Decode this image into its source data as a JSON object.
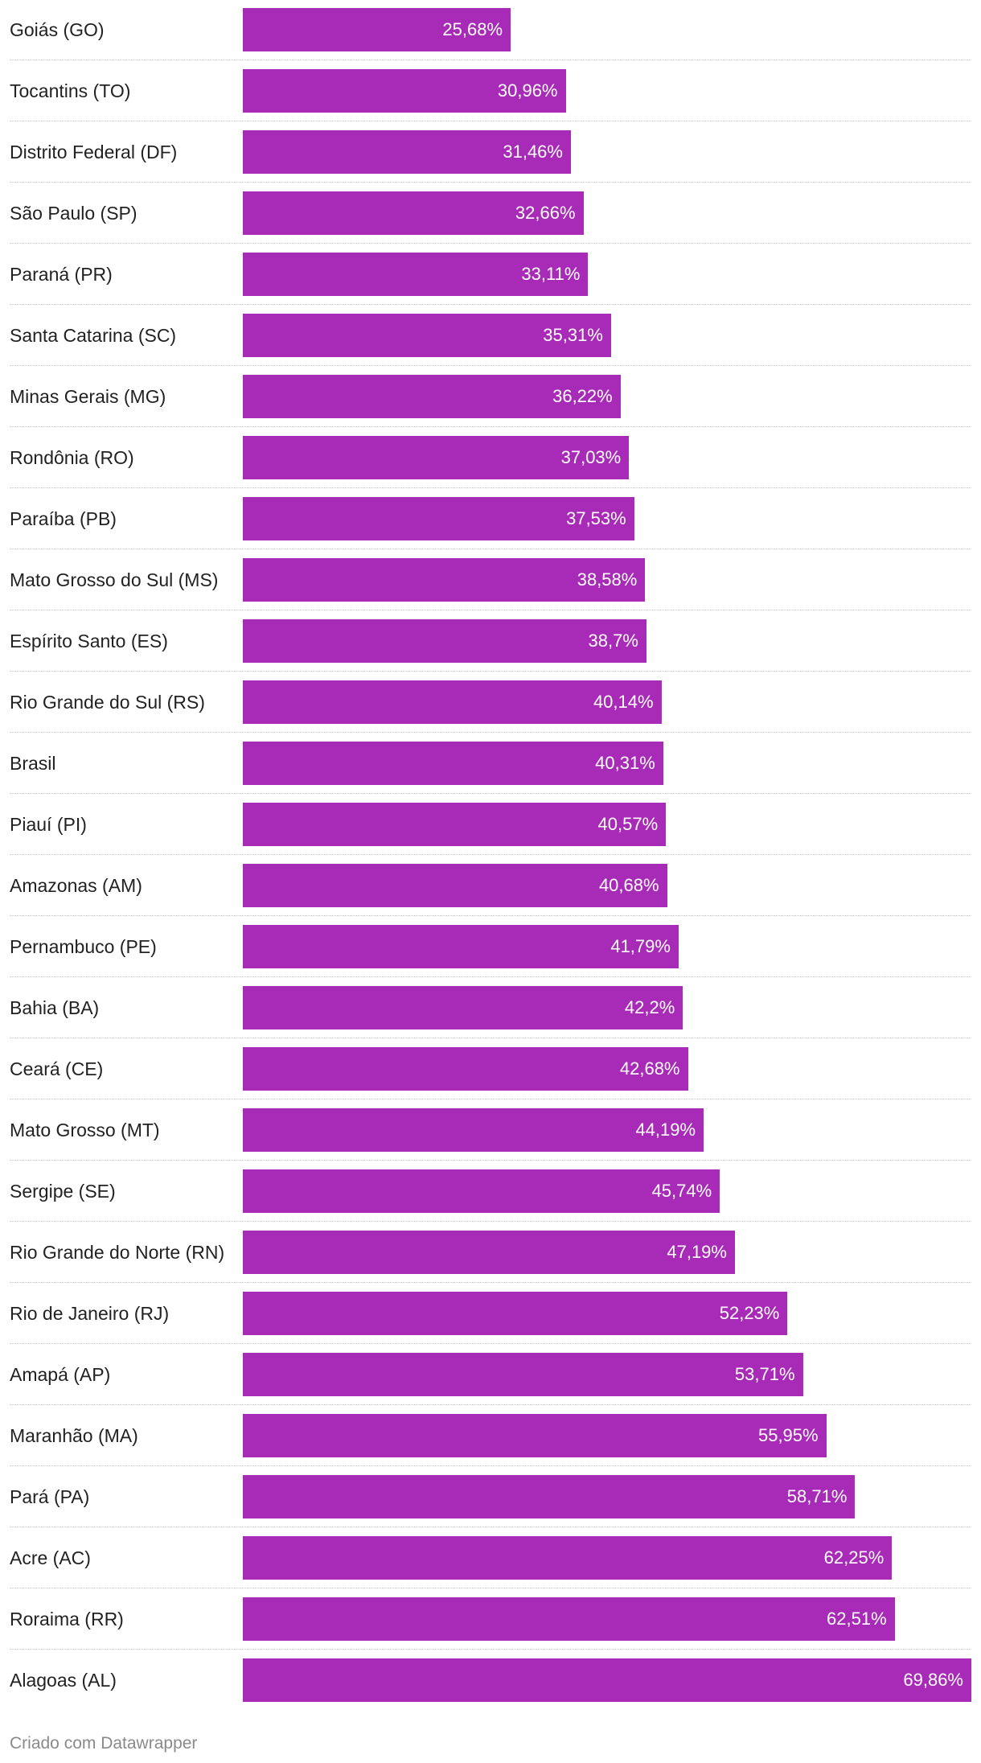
{
  "chart_data": {
    "type": "bar",
    "orientation": "horizontal",
    "bar_color": "#a82bb8",
    "categories": [
      "Goiás (GO)",
      "Tocantins (TO)",
      "Distrito Federal (DF)",
      "São Paulo (SP)",
      "Paraná (PR)",
      "Santa Catarina (SC)",
      "Minas Gerais (MG)",
      "Rondônia (RO)",
      "Paraíba (PB)",
      "Mato Grosso do Sul (MS)",
      "Espírito Santo (ES)",
      "Rio Grande do Sul (RS)",
      "Brasil",
      "Piauí (PI)",
      "Amazonas (AM)",
      "Pernambuco (PE)",
      "Bahia (BA)",
      "Ceará (CE)",
      "Mato Grosso (MT)",
      "Sergipe (SE)",
      "Rio Grande do Norte (RN)",
      "Rio de Janeiro (RJ)",
      "Amapá (AP)",
      "Maranhão (MA)",
      "Pará (PA)",
      "Acre (AC)",
      "Roraima (RR)",
      "Alagoas (AL)"
    ],
    "values": [
      25.68,
      30.96,
      31.46,
      32.66,
      33.11,
      35.31,
      36.22,
      37.03,
      37.53,
      38.58,
      38.7,
      40.14,
      40.31,
      40.57,
      40.68,
      41.79,
      42.2,
      42.68,
      44.19,
      45.74,
      47.19,
      52.23,
      53.71,
      55.95,
      58.71,
      62.25,
      62.51,
      69.86
    ],
    "value_labels": [
      "25,68%",
      "30,96%",
      "31,46%",
      "32,66%",
      "33,11%",
      "35,31%",
      "36,22%",
      "37,03%",
      "37,53%",
      "38,58%",
      "38,7%",
      "40,14%",
      "40,31%",
      "40,57%",
      "40,68%",
      "41,79%",
      "42,2%",
      "42,68%",
      "44,19%",
      "45,74%",
      "47,19%",
      "52,23%",
      "53,71%",
      "55,95%",
      "58,71%",
      "62,25%",
      "62,51%",
      "69,86%"
    ],
    "xlim": [
      0,
      69.86
    ],
    "grid": false,
    "legend": "none"
  },
  "footer": {
    "credit": "Criado com Datawrapper"
  }
}
